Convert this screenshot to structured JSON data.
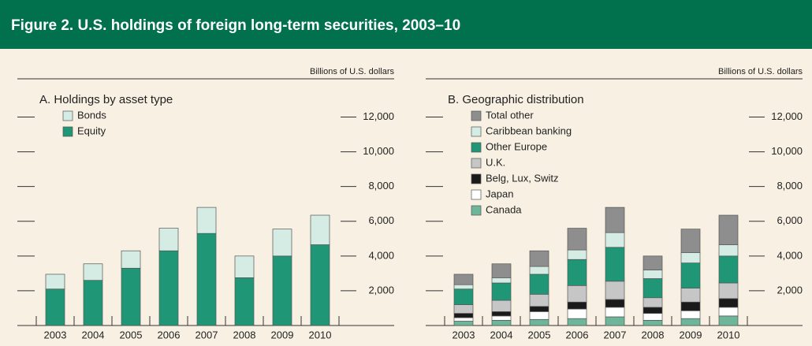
{
  "title": "Figure 2. U.S. holdings of foreign long-term securities, 2003–10",
  "chart_data": [
    {
      "type": "bar",
      "stacked": true,
      "title": "A. Holdings by asset type",
      "y_label": "Billions of U.S. dollars",
      "categories": [
        "2003",
        "2004",
        "2005",
        "2006",
        "2007",
        "2008",
        "2009",
        "2010"
      ],
      "series": [
        {
          "name": "Bonds",
          "color": "#d4ece3",
          "values": [
            850,
            950,
            1000,
            1300,
            1500,
            1250,
            1550,
            1700
          ]
        },
        {
          "name": "Equity",
          "color": "#1f9676",
          "values": [
            2100,
            2600,
            3300,
            4300,
            5300,
            2750,
            4000,
            4650
          ]
        }
      ],
      "ylim": [
        0,
        14200
      ],
      "yticks": [
        {
          "value": 2000,
          "label": "2,000"
        },
        {
          "value": 4000,
          "label": "4,000"
        },
        {
          "value": 6000,
          "label": "6,000"
        },
        {
          "value": 8000,
          "label": "8,000"
        },
        {
          "value": 10000,
          "label": "10,000"
        },
        {
          "value": 12000,
          "label": "12,000"
        }
      ]
    },
    {
      "type": "bar",
      "stacked": true,
      "title": "B. Geographic distribution",
      "y_label": "Billions of U.S. dollars",
      "categories": [
        "2003",
        "2004",
        "2005",
        "2006",
        "2007",
        "2008",
        "2009",
        "2010"
      ],
      "series": [
        {
          "name": "Total other",
          "color": "#8e8e8e",
          "values": [
            600,
            800,
            900,
            1250,
            1450,
            800,
            1350,
            1700
          ]
        },
        {
          "name": "Caribbean banking",
          "color": "#d4ece3",
          "values": [
            250,
            300,
            450,
            550,
            850,
            500,
            600,
            650
          ]
        },
        {
          "name": "Other Europe",
          "color": "#1f9676",
          "values": [
            900,
            1000,
            1150,
            1500,
            1950,
            1100,
            1450,
            1550
          ]
        },
        {
          "name": "U.K.",
          "color": "#c6c6c6",
          "values": [
            500,
            650,
            700,
            950,
            1050,
            550,
            800,
            900
          ]
        },
        {
          "name": "Belg, Lux, Switz",
          "color": "#1a1a1a",
          "values": [
            250,
            250,
            300,
            400,
            450,
            350,
            500,
            500
          ]
        },
        {
          "name": "Japan",
          "color": "#ffffff",
          "values": [
            200,
            250,
            450,
            550,
            550,
            400,
            450,
            500
          ]
        },
        {
          "name": "Canada",
          "color": "#6db69a",
          "values": [
            250,
            300,
            350,
            400,
            500,
            300,
            400,
            550
          ]
        }
      ],
      "ylim": [
        0,
        14200
      ],
      "yticks": [
        {
          "value": 2000,
          "label": "2,000"
        },
        {
          "value": 4000,
          "label": "4,000"
        },
        {
          "value": 6000,
          "label": "6,000"
        },
        {
          "value": 8000,
          "label": "8,000"
        },
        {
          "value": 10000,
          "label": "10,000"
        },
        {
          "value": 12000,
          "label": "12,000"
        }
      ]
    }
  ]
}
